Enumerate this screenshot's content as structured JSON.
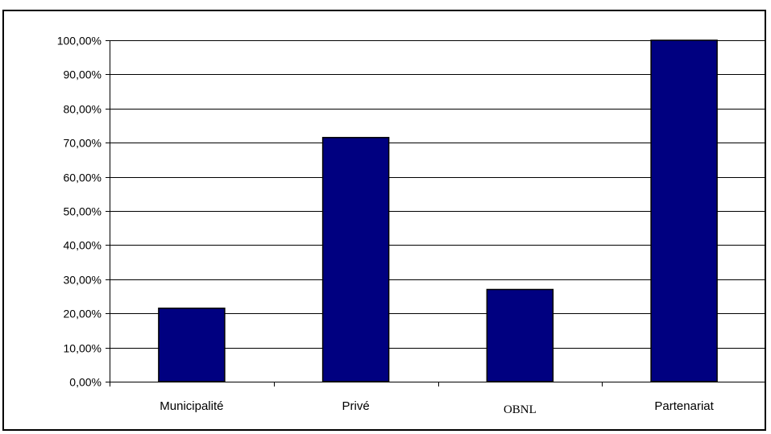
{
  "chart_data": {
    "type": "bar",
    "categories": [
      "Municipalité",
      "Privé",
      "OBNL",
      "Partenariat"
    ],
    "values": [
      21.5,
      71.5,
      27.0,
      100.0
    ],
    "ylim": [
      0,
      100
    ],
    "yticks": [
      0,
      10,
      20,
      30,
      40,
      50,
      60,
      70,
      80,
      90,
      100
    ],
    "ytick_labels": [
      "0,00%",
      "10,00%",
      "20,00%",
      "30,00%",
      "40,00%",
      "50,00%",
      "60,00%",
      "70,00%",
      "80,00%",
      "90,00%",
      "100,00%"
    ],
    "grid": true,
    "legend": "none",
    "colors": {
      "bar_fill": "#000080",
      "bar_stroke": "#000000",
      "grid": "#000000"
    }
  }
}
